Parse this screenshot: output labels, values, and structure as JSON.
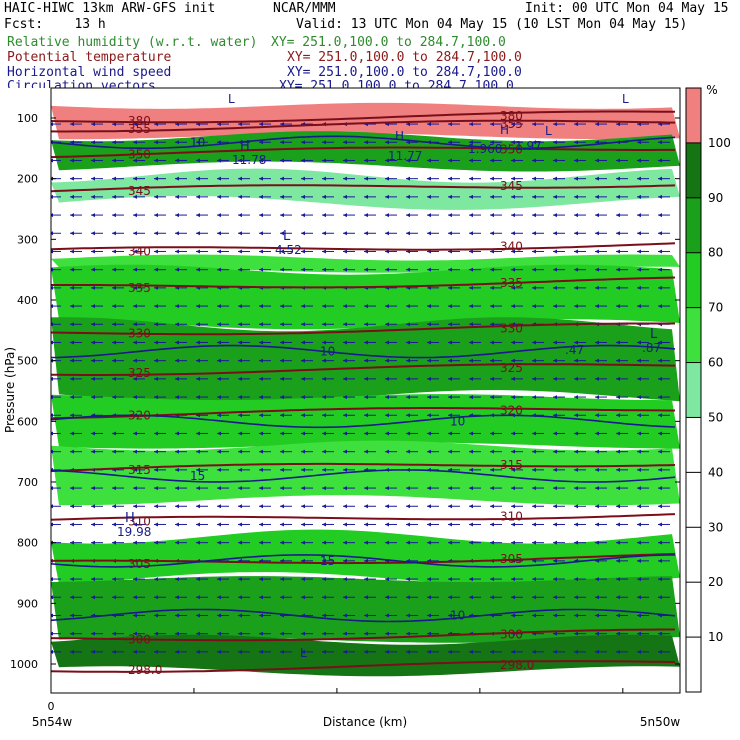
{
  "header": {
    "line1_left": "HAIC-HIWC 13km ARW-GFS init",
    "line1_mid": "NCAR/MMM",
    "line1_right": "Init: 00 UTC Mon 04 May 15",
    "line2_left": "Fcst:    13 h",
    "line2_right": "Valid: 13 UTC Mon 04 May 15 (10 LST Mon 04 May 15)"
  },
  "fields": [
    {
      "name": "Relative humidity (w.r.t. water)",
      "xy": "XY= 251.0,100.0 to 284.7,100.0",
      "color": "#2e8b2e"
    },
    {
      "name": "Potential temperature",
      "xy": "XY= 251.0,100.0 to 284.7,100.0",
      "color": "#8b1a1a"
    },
    {
      "name": "Horizontal wind speed",
      "xy": "XY= 251.0,100.0 to 284.7,100.0",
      "color": "#1a1a8b"
    },
    {
      "name": "Circulation vectors",
      "xy": "XY= 251.0,100.0 to 284.7,100.0",
      "color": "#1a1a8b"
    }
  ],
  "chart_data": {
    "type": "heatmap",
    "title": "Relative humidity (w.r.t. water)",
    "xlabel": "Distance (km)",
    "ylabel": "Pressure (hPa)",
    "x_start_label": "0",
    "x_left_label": "5n54w",
    "x_right_label": "5n50w",
    "y_ticks": [
      100,
      200,
      300,
      400,
      500,
      600,
      700,
      800,
      900,
      1000
    ],
    "y_range": [
      80,
      1050
    ],
    "colorbar": {
      "unit": "%",
      "ticks": [
        10,
        20,
        30,
        40,
        50,
        60,
        70,
        80,
        90,
        100
      ],
      "bands": [
        {
          "from": 50,
          "to": 60,
          "color": "#7ee8a0"
        },
        {
          "from": 60,
          "to": 70,
          "color": "#3ee03e"
        },
        {
          "from": 70,
          "to": 80,
          "color": "#22cc22"
        },
        {
          "from": 80,
          "to": 90,
          "color": "#1aa01a"
        },
        {
          "from": 90,
          "to": 100,
          "color": "#157515"
        },
        {
          "from": 100,
          "to": 105,
          "color": "#f08080"
        }
      ]
    },
    "rh_layers": [
      {
        "p_top": 80,
        "p_bot": 130,
        "rh": 100
      },
      {
        "p_top": 130,
        "p_bot": 180,
        "rh": 85
      },
      {
        "p_top": 195,
        "p_bot": 240,
        "rh": 55
      },
      {
        "p_top": 330,
        "p_bot": 350,
        "rh": 60
      },
      {
        "p_top": 350,
        "p_bot": 440,
        "rh": 75
      },
      {
        "p_top": 440,
        "p_bot": 560,
        "rh": 85
      },
      {
        "p_top": 560,
        "p_bot": 640,
        "rh": 75
      },
      {
        "p_top": 640,
        "p_bot": 730,
        "rh": 65
      },
      {
        "p_top": 790,
        "p_bot": 860,
        "rh": 70
      },
      {
        "p_top": 860,
        "p_bot": 960,
        "rh": 85
      },
      {
        "p_top": 960,
        "p_bot": 1012,
        "rh": 95
      }
    ],
    "theta_contours": [
      {
        "label": "380",
        "p": 105
      },
      {
        "label": "355",
        "p": 118
      },
      {
        "label": "350",
        "p": 160
      },
      {
        "label": "345",
        "p": 220
      },
      {
        "label": "340",
        "p": 320
      },
      {
        "label": "335",
        "p": 380
      },
      {
        "label": "330",
        "p": 455
      },
      {
        "label": "325",
        "p": 520
      },
      {
        "label": "320",
        "p": 590
      },
      {
        "label": "315",
        "p": 680
      },
      {
        "label": "310",
        "p": 765
      },
      {
        "label": "305",
        "p": 835
      },
      {
        "label": "300",
        "p": 960
      },
      {
        "label": "298.0",
        "p": 1010
      }
    ],
    "wind_contours": [
      {
        "label": "10",
        "p": 140
      },
      {
        "label": "10",
        "p": 485
      },
      {
        "label": "10",
        "p": 600
      },
      {
        "label": "15",
        "p": 690
      },
      {
        "label": "15",
        "p": 830
      },
      {
        "label": "10",
        "p": 920
      }
    ],
    "extrema": [
      {
        "kind": "H",
        "value": "11.78"
      },
      {
        "kind": "L",
        "value": "4.52"
      },
      {
        "kind": "H",
        "value": "19.98"
      },
      {
        "kind": "L",
        "value": ".87"
      }
    ],
    "marker_labels": [
      "L",
      "H",
      "H",
      "L",
      "L",
      "L"
    ],
    "extra_labels": [
      "11.77",
      "1.960",
      "1.97",
      ".47"
    ]
  }
}
